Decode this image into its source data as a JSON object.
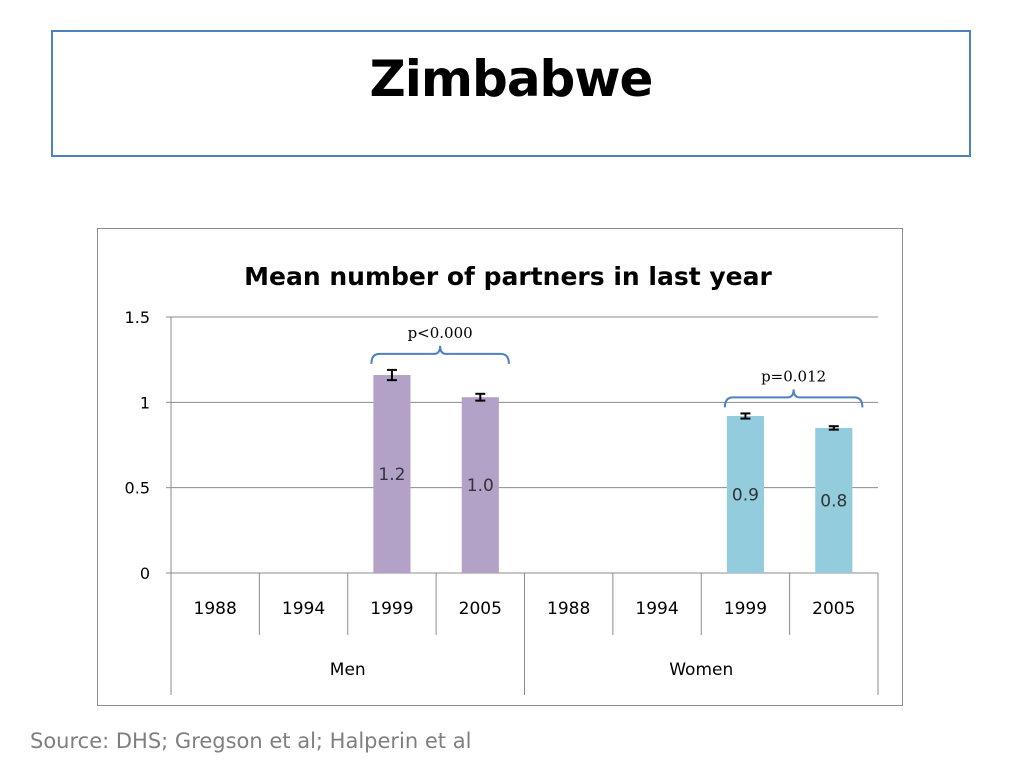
{
  "slide": {
    "title": "Zimbabwe",
    "source": "Source: DHS; Gregson et al; Halperin et al"
  },
  "chart_data": {
    "type": "bar",
    "title": "Mean number of partners in last year",
    "ylim": [
      0,
      1.5
    ],
    "yticks": [
      0,
      0.5,
      1,
      1.5
    ],
    "ytick_labels": [
      "0",
      "0.5",
      "1",
      "1.5"
    ],
    "grid": true,
    "groups": [
      {
        "label": "Men",
        "color": "#b3a2c7",
        "categories": [
          "1988",
          "1994",
          "1999",
          "2005"
        ],
        "values": [
          null,
          null,
          1.16,
          1.03
        ],
        "errors": [
          null,
          null,
          0.03,
          0.02
        ],
        "data_labels": [
          "",
          "",
          "1.2",
          "1.0"
        ],
        "annotation": {
          "text": "p<0.000",
          "span": [
            "1999",
            "2005"
          ]
        }
      },
      {
        "label": "Women",
        "color": "#93cddd",
        "categories": [
          "1988",
          "1994",
          "1999",
          "2005"
        ],
        "values": [
          null,
          null,
          0.92,
          0.85
        ],
        "errors": [
          null,
          null,
          0.015,
          0.01
        ],
        "data_labels": [
          "",
          "",
          "0.9",
          "0.8"
        ],
        "annotation": {
          "text": "p=0.012",
          "span": [
            "1999",
            "2005"
          ]
        }
      }
    ]
  }
}
